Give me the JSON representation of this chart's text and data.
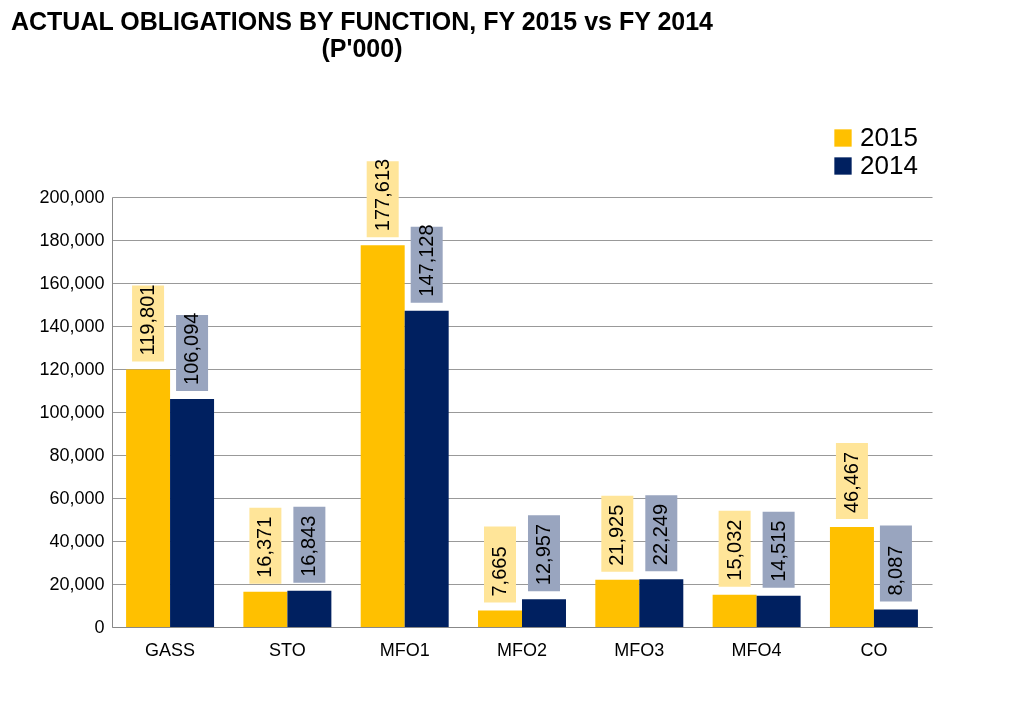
{
  "chart_data": {
    "type": "bar",
    "title": "ACTUAL OBLIGATIONS BY FUNCTION, FY 2015 vs FY 2014",
    "subtitle": "(P'000)",
    "categories": [
      "GASS",
      "STO",
      "MFO1",
      "MFO2",
      "MFO3",
      "MFO4",
      "CO"
    ],
    "series": [
      {
        "name": "2015",
        "color": "#ffc000",
        "values": [
          119801,
          16371,
          177613,
          7665,
          21925,
          15032,
          46467
        ],
        "value_labels": [
          "119,801",
          "16,371",
          "177,613",
          "7,665",
          "21,925",
          "15,032",
          "46,467"
        ]
      },
      {
        "name": "2014",
        "color": "#002060",
        "values": [
          106094,
          16843,
          147128,
          12957,
          22249,
          14515,
          8087
        ],
        "value_labels": [
          "106,094",
          "16,843",
          "147,128",
          "12,957",
          "22,249",
          "14,515",
          "8,087"
        ]
      }
    ],
    "ylim": [
      0,
      200000
    ],
    "yticks": [
      {
        "value": 0,
        "label": "0"
      },
      {
        "value": 20000,
        "label": "20,000"
      },
      {
        "value": 40000,
        "label": "40,000"
      },
      {
        "value": 60000,
        "label": "60,000"
      },
      {
        "value": 80000,
        "label": "80,000"
      },
      {
        "value": 100000,
        "label": "100,000"
      },
      {
        "value": 120000,
        "label": "120,000"
      },
      {
        "value": 140000,
        "label": "140,000"
      },
      {
        "value": 160000,
        "label": "160,000"
      },
      {
        "value": 180000,
        "label": "180,000"
      },
      {
        "value": 200000,
        "label": "200,000"
      }
    ],
    "grid": "y",
    "legend": "top right"
  }
}
